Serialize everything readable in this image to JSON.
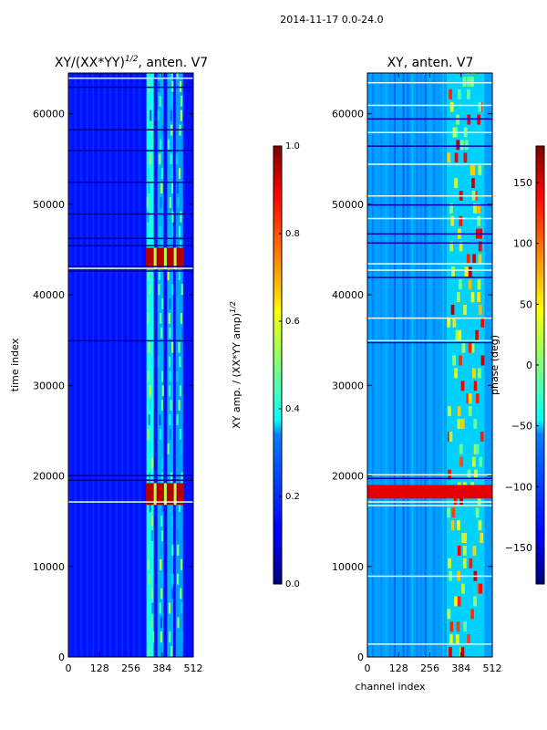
{
  "suptitle": "2014-11-17 0.0-24.0",
  "chart_data": [
    {
      "type": "heatmap",
      "title": "XY/(XX*YY)",
      "title_exponent": "1/2",
      "title_suffix": ", anten. V7",
      "xlabel": "",
      "ylabel": "time index",
      "xlim": [
        0,
        512
      ],
      "ylim": [
        0,
        64500
      ],
      "xticks": [
        0,
        128,
        256,
        384,
        512
      ],
      "yticks": [
        0,
        10000,
        20000,
        30000,
        40000,
        50000,
        60000
      ],
      "colormap": "jet",
      "bands": [
        {
          "x0": 320,
          "x1": 350,
          "level": 0.4
        },
        {
          "x0": 365,
          "x1": 390,
          "level": 0.3
        },
        {
          "x0": 405,
          "x1": 430,
          "level": 0.3
        },
        {
          "x0": 440,
          "x1": 470,
          "level": 0.28
        }
      ],
      "hot_blocks": [
        {
          "y0": 16800,
          "y1": 19200,
          "level": 0.95
        },
        {
          "y0": 42800,
          "y1": 45200,
          "level": 0.95
        }
      ],
      "dark_rows": [
        19600,
        20100,
        35000,
        42700,
        43200,
        45500,
        46300,
        49000,
        52500,
        56000,
        58300,
        63000
      ],
      "light_rows": [
        17200,
        43000,
        64000
      ]
    },
    {
      "type": "colorbar",
      "label": "XY amp. / (XX*YY amp)",
      "label_exponent": "1/2",
      "range": [
        0.0,
        1.0
      ],
      "ticks": [
        0.0,
        0.2,
        0.4,
        0.6,
        0.8,
        1.0
      ],
      "tick_labels": [
        "0.0",
        "0.2",
        "0.4",
        "0.6",
        "0.8",
        "1.0"
      ]
    },
    {
      "type": "heatmap",
      "title": "XY, anten. V7",
      "xlabel": "channel index",
      "ylabel": "",
      "xlim": [
        0,
        512
      ],
      "ylim": [
        0,
        64500
      ],
      "xticks": [
        0,
        128,
        256,
        384,
        512
      ],
      "yticks": [
        0,
        10000,
        20000,
        30000,
        40000,
        50000,
        60000
      ],
      "colormap": "jet",
      "band_range": [
        325,
        480
      ],
      "hot_rows": [
        {
          "y0": 17500,
          "y1": 19000,
          "level": 0.9
        }
      ],
      "light_rows": [
        1500,
        9000,
        16800,
        17200,
        20200,
        35000,
        37500,
        42800,
        43500,
        48500,
        51000,
        54500,
        58000,
        61000,
        63500
      ],
      "dark_rows": [
        19800,
        34800,
        42000,
        45800,
        46800,
        50000,
        56500,
        59500
      ]
    },
    {
      "type": "colorbar",
      "label": "phase (deg)",
      "range": [
        -180,
        180
      ],
      "ticks": [
        -150,
        -100,
        -50,
        0,
        50,
        100,
        150
      ],
      "tick_labels": [
        "−150",
        "−100",
        "−50",
        "0",
        "50",
        "100",
        "150"
      ]
    }
  ]
}
